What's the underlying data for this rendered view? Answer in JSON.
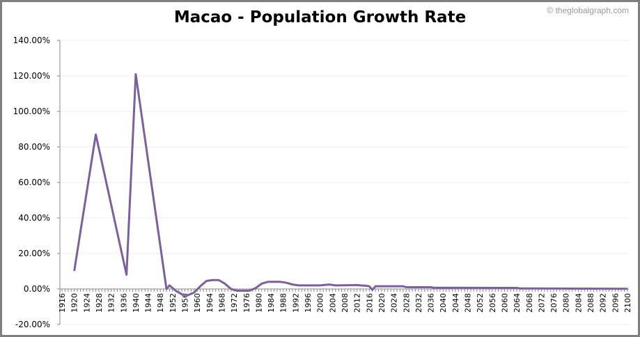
{
  "chart_data": {
    "type": "line",
    "title": "Macao - Population Growth Rate",
    "credit": "© theglobalgraph.com",
    "xlabel": "",
    "ylabel": "",
    "xlim": [
      1916,
      2100
    ],
    "ylim": [
      -20,
      140
    ],
    "y_ticks": [
      -20,
      0,
      20,
      40,
      60,
      80,
      100,
      120,
      140
    ],
    "y_tick_labels": [
      "-20.00%",
      "0.00%",
      "20.00%",
      "40.00%",
      "60.00%",
      "80.00%",
      "100.00%",
      "120.00%",
      "140.00%"
    ],
    "x_tick_labels": [
      "1916",
      "1920",
      "1924",
      "1928",
      "1932",
      "1936",
      "1940",
      "1944",
      "1948",
      "1952",
      "1956",
      "1960",
      "1964",
      "1968",
      "1972",
      "1976",
      "1980",
      "1984",
      "1988",
      "1992",
      "1996",
      "2000",
      "2004",
      "2008",
      "2012",
      "2016",
      "2020",
      "2024",
      "2028",
      "2032",
      "2036",
      "2040",
      "2044",
      "2048",
      "2052",
      "2056",
      "2060",
      "2064",
      "2068",
      "2072",
      "2076",
      "2080",
      "2084",
      "2088",
      "2092",
      "2096",
      "2100"
    ],
    "grid": "horizontal",
    "line_color": "#7b5fa0",
    "series": [
      {
        "x": [
          1920,
          1927,
          1937,
          1940,
          1950,
          1951,
          1953,
          1955,
          1957,
          1959,
          1961,
          1963,
          1965,
          1967,
          1969,
          1971,
          1973,
          1975,
          1977,
          1979,
          1981,
          1983,
          1985,
          1987,
          1989,
          1991,
          1993,
          1995,
          2000,
          2003,
          2005,
          2012,
          2013,
          2015,
          2016,
          2017,
          2018,
          2027,
          2028,
          2036,
          2037,
          2064,
          2065,
          2100
        ],
        "y": [
          10.2,
          87,
          8,
          121,
          0,
          2,
          -1,
          -3,
          -3.5,
          -2,
          1.5,
          4.5,
          5,
          5,
          3,
          0,
          -1,
          -1,
          -1,
          0.5,
          3,
          4,
          4,
          4,
          3.5,
          2.5,
          2,
          2,
          2,
          2.5,
          2,
          2.2,
          2,
          1.8,
          1.5,
          -0.5,
          1.5,
          1.5,
          1,
          1,
          0.7,
          0.6,
          0.3,
          0.1
        ]
      }
    ]
  }
}
